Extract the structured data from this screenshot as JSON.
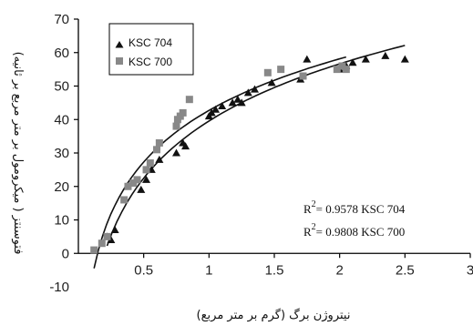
{
  "chart_data": {
    "type": "scatter",
    "xlabel": "نیتروژن برگ (گرم بر متر مربع)",
    "ylabel": "فتوسنتز ( میکرومول بر متر مربع بر ثانیه)",
    "xlim": [
      0,
      3
    ],
    "ylim": [
      -10,
      70
    ],
    "x_ticks": [
      "0.5",
      "1",
      "1.5",
      "2",
      "2.5",
      "3"
    ],
    "y_ticks": [
      "-10",
      "0",
      "10",
      "20",
      "30",
      "40",
      "50",
      "60",
      "70"
    ],
    "legend_position": "top-left",
    "series": [
      {
        "name": "KSC 704",
        "marker": "triangle",
        "color": "#111111",
        "points": [
          [
            0.22,
            5
          ],
          [
            0.25,
            4
          ],
          [
            0.28,
            7
          ],
          [
            0.48,
            19
          ],
          [
            0.52,
            22
          ],
          [
            0.56,
            25
          ],
          [
            0.62,
            28
          ],
          [
            0.75,
            30
          ],
          [
            0.8,
            33
          ],
          [
            0.82,
            32
          ],
          [
            1.0,
            41
          ],
          [
            1.02,
            42
          ],
          [
            1.05,
            43
          ],
          [
            1.1,
            44
          ],
          [
            1.18,
            45
          ],
          [
            1.22,
            46
          ],
          [
            1.25,
            45
          ],
          [
            1.3,
            48
          ],
          [
            1.35,
            49
          ],
          [
            1.48,
            51
          ],
          [
            1.7,
            52
          ],
          [
            1.75,
            58
          ],
          [
            2.0,
            55
          ],
          [
            2.05,
            56
          ],
          [
            2.1,
            57
          ],
          [
            2.2,
            58
          ],
          [
            2.35,
            59
          ],
          [
            2.5,
            58
          ]
        ]
      },
      {
        "name": "KSC 700",
        "marker": "square",
        "color": "#888888",
        "points": [
          [
            0.12,
            1
          ],
          [
            0.18,
            3
          ],
          [
            0.22,
            5
          ],
          [
            0.35,
            16
          ],
          [
            0.38,
            20
          ],
          [
            0.42,
            21
          ],
          [
            0.45,
            22
          ],
          [
            0.52,
            25
          ],
          [
            0.55,
            27
          ],
          [
            0.6,
            31
          ],
          [
            0.62,
            33
          ],
          [
            0.75,
            38
          ],
          [
            0.76,
            40
          ],
          [
            0.78,
            41
          ],
          [
            0.8,
            42
          ],
          [
            0.85,
            46
          ],
          [
            1.45,
            54
          ],
          [
            1.55,
            55
          ],
          [
            1.72,
            53
          ],
          [
            1.98,
            55
          ],
          [
            2.02,
            56
          ],
          [
            2.05,
            55
          ]
        ]
      }
    ],
    "trendlines": [
      {
        "series": "KSC 704",
        "r2_label": "R",
        "r2_value": "= 0.9578  KSC 704"
      },
      {
        "series": "KSC 700",
        "r2_label": "R",
        "r2_value": "= 0.9808  KSC 700"
      }
    ],
    "r2_superscript": "2"
  }
}
